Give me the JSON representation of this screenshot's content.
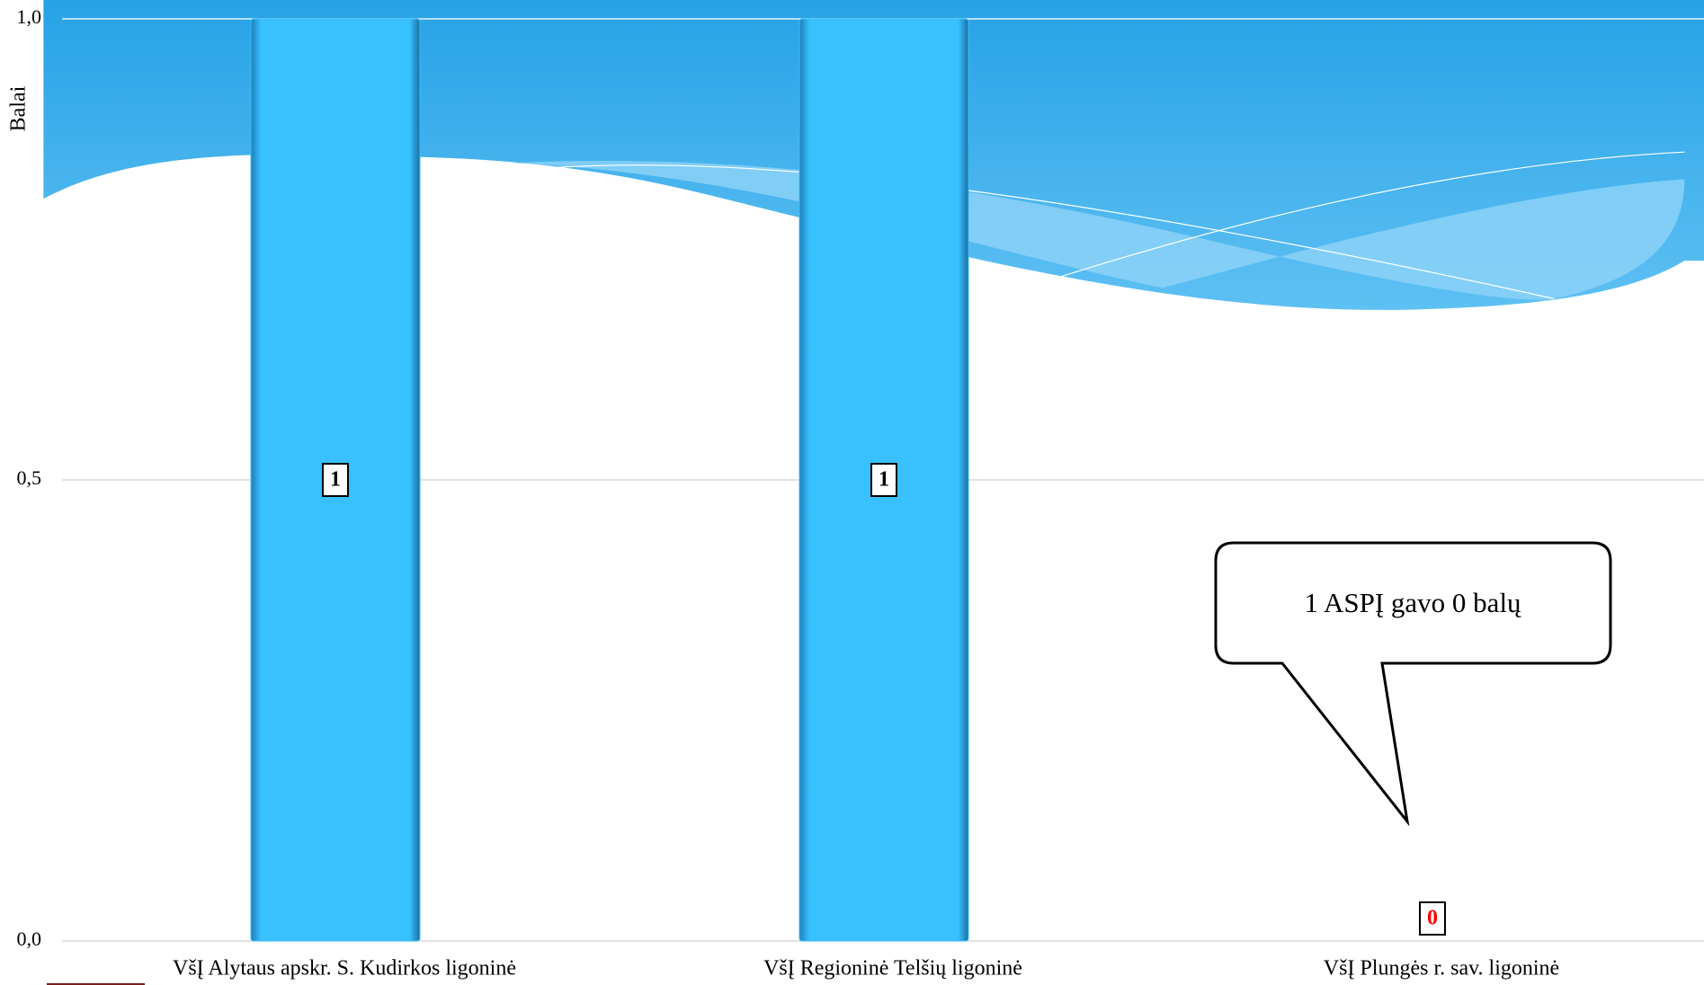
{
  "chart_data": {
    "type": "bar",
    "y_label": "Balai",
    "categories": [
      "VšĮ Alytaus apskr. S. Kudirkos ligoninė",
      "VšĮ Regioninė Telšių  ligoninė",
      "VšĮ Plungės r. sav. ligoninė"
    ],
    "values": [
      1,
      1,
      0
    ],
    "color": "#38c0ff",
    "label_colors": [
      "#000000",
      "#000000",
      "#ff0000"
    ],
    "ylim": [
      0,
      1
    ],
    "yticks": [
      {
        "value": 0,
        "label": "0,0"
      },
      {
        "value": 0.5,
        "label": "0,5"
      },
      {
        "value": 1,
        "label": "1,0"
      }
    ],
    "grid": true,
    "annotation": "1 ASPĮ gavo 0 balų"
  }
}
